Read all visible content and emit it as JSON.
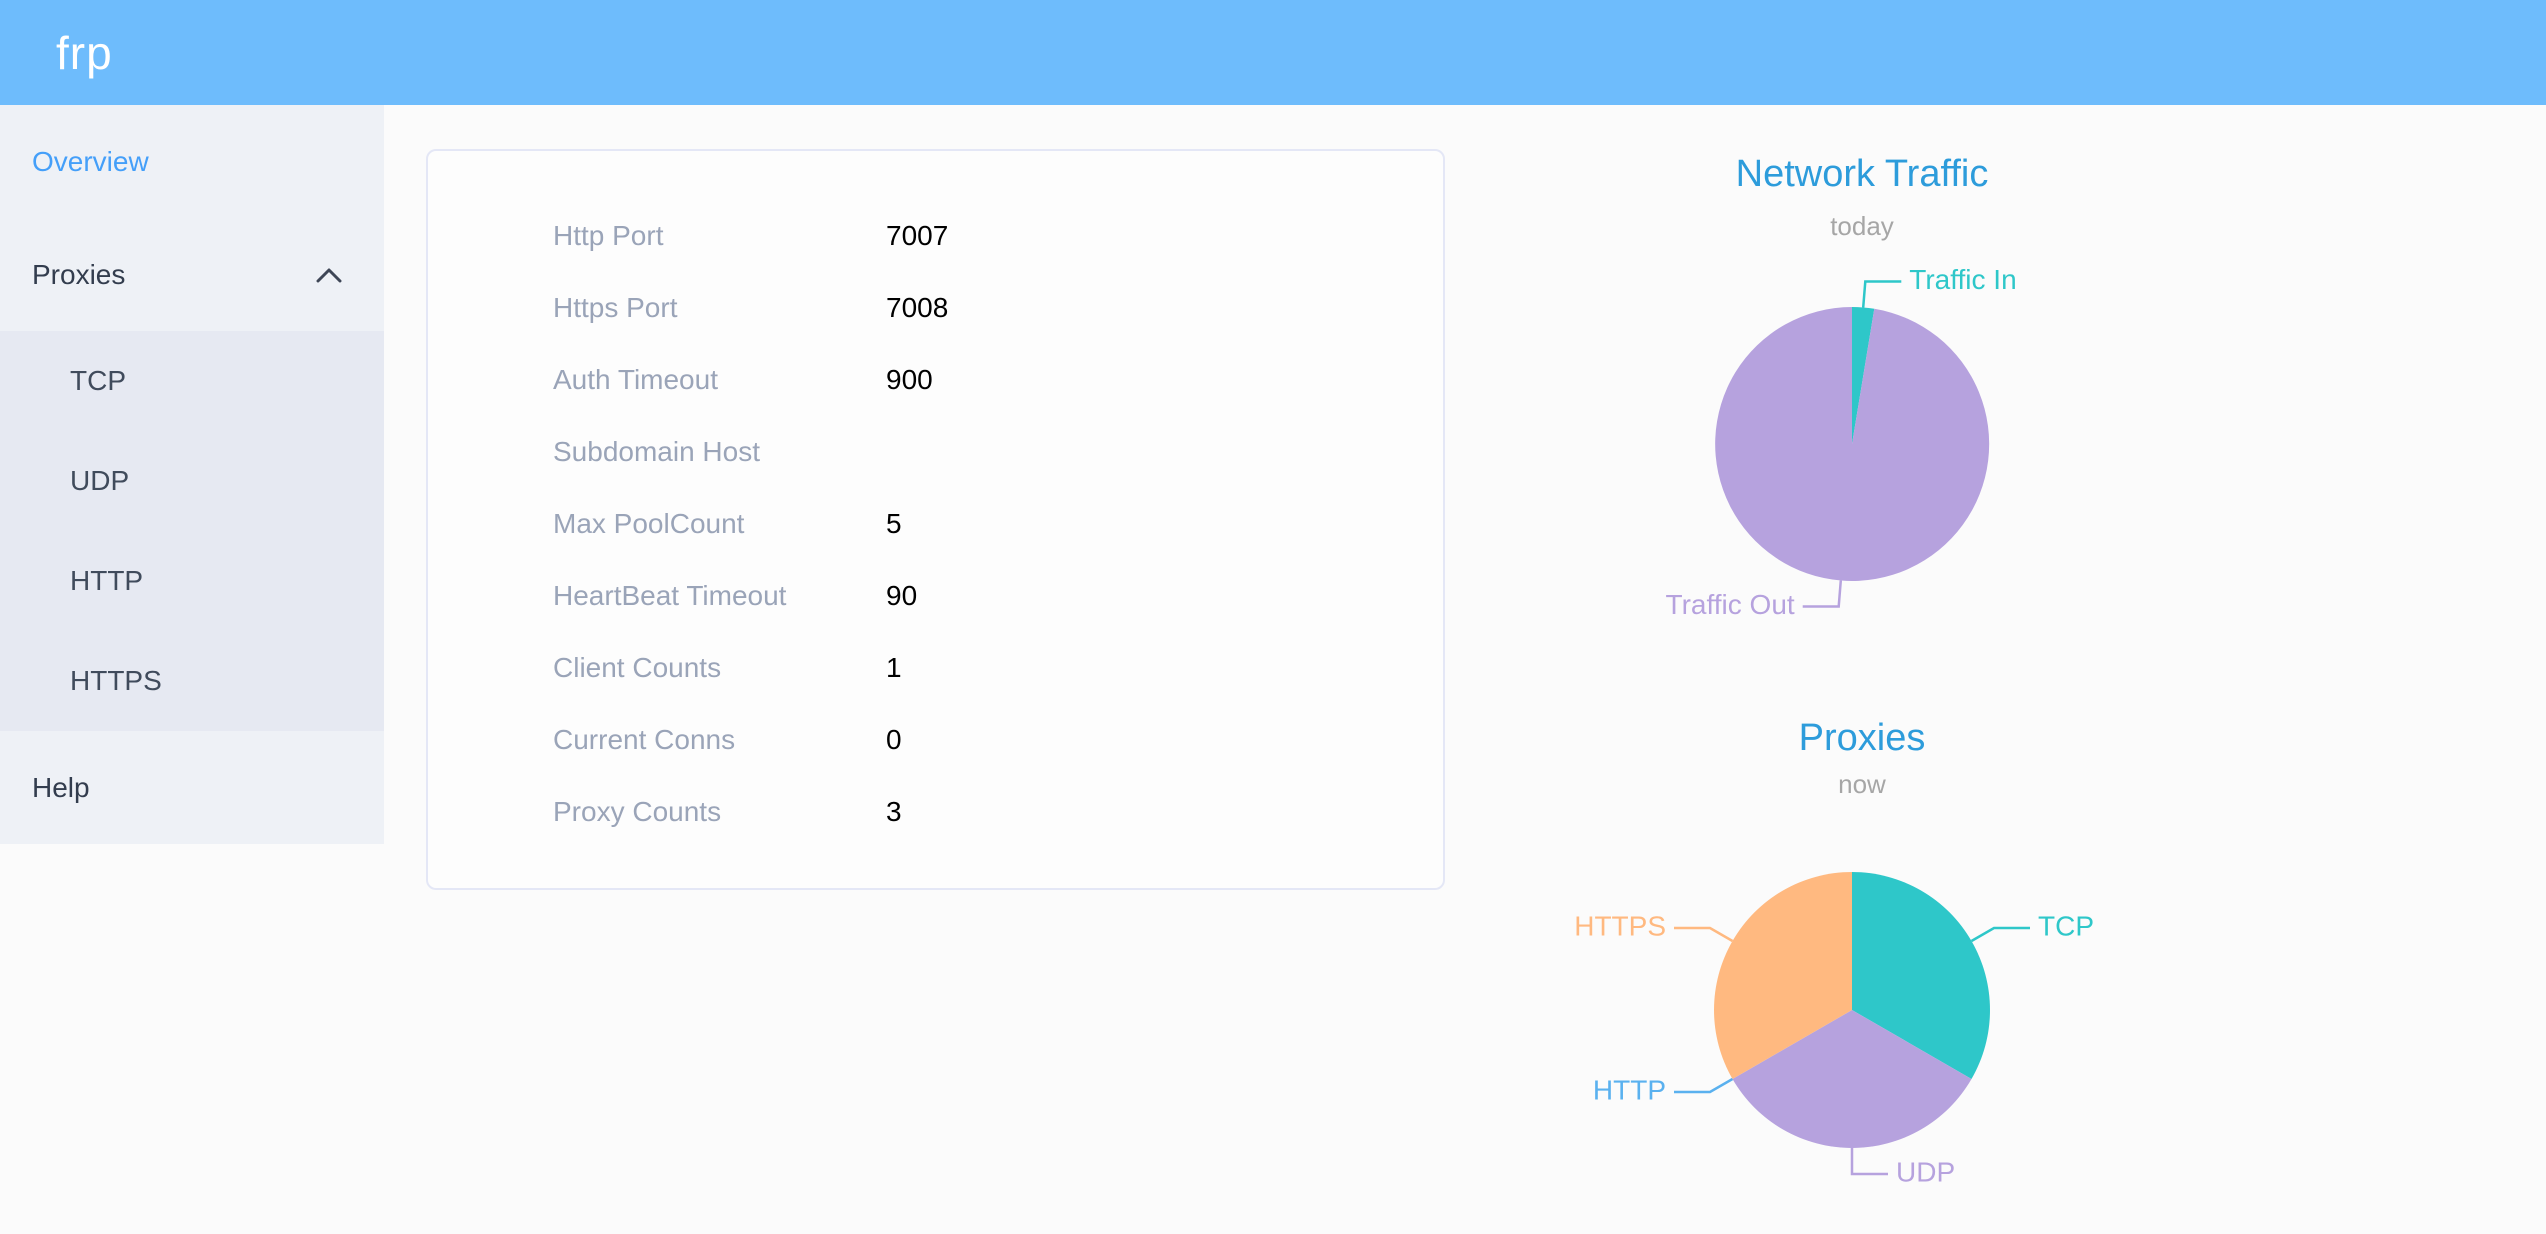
{
  "header": {
    "logo": "frp"
  },
  "sidebar": {
    "items": [
      {
        "label": "Overview",
        "active": true
      },
      {
        "label": "Proxies",
        "expanded": true,
        "children": [
          "TCP",
          "UDP",
          "HTTP",
          "HTTPS"
        ]
      },
      {
        "label": "Help"
      }
    ]
  },
  "server_info": {
    "rows": [
      {
        "label": "Http Port",
        "value": "7007"
      },
      {
        "label": "Https Port",
        "value": "7008"
      },
      {
        "label": "Auth Timeout",
        "value": "900"
      },
      {
        "label": "Subdomain Host",
        "value": ""
      },
      {
        "label": "Max PoolCount",
        "value": "5"
      },
      {
        "label": "HeartBeat Timeout",
        "value": "90"
      },
      {
        "label": "Client Counts",
        "value": "1"
      },
      {
        "label": "Current Conns",
        "value": "0"
      },
      {
        "label": "Proxy Counts",
        "value": "3"
      }
    ]
  },
  "chart_data": [
    {
      "type": "pie",
      "title": "Network Traffic",
      "subtitle": "today",
      "legend_position": "none",
      "labels_on": "leader-lines",
      "slices": [
        {
          "name": "Traffic In",
          "value": 2.6,
          "unit": "% (estimated from arc angle)",
          "color": "#2ec7c9"
        },
        {
          "name": "Traffic Out",
          "value": 97.4,
          "unit": "% (estimated from arc angle)",
          "color": "#b6a2de"
        }
      ]
    },
    {
      "type": "pie",
      "title": "Proxies",
      "subtitle": "now",
      "legend_position": "none",
      "labels_on": "leader-lines",
      "slices": [
        {
          "name": "TCP",
          "value": 1,
          "color": "#2ec7c9"
        },
        {
          "name": "UDP",
          "value": 1,
          "color": "#b6a2de"
        },
        {
          "name": "HTTP",
          "value": 0,
          "color": "#5ab1ef"
        },
        {
          "name": "HTTPS",
          "value": 1,
          "color": "#ffb980"
        }
      ]
    }
  ],
  "colors": {
    "header_bg": "#6ebcfc",
    "sidebar_bg": "#eef1f6",
    "submenu_bg": "#e6e9f2",
    "active_menu_item": "#449ff9",
    "menu_text": "#333d4e",
    "chart_title": "#2d9cdb",
    "config_label": "#9aa4b8",
    "config_value": "#000000"
  }
}
